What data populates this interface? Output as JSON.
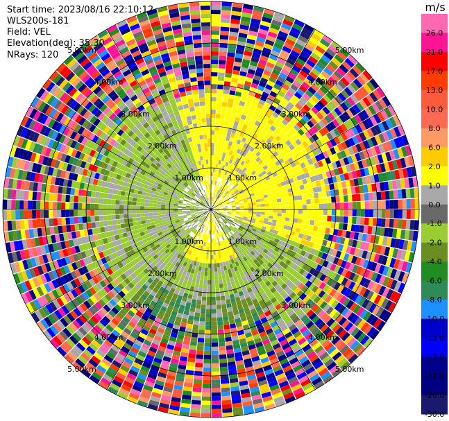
{
  "header": {
    "start_time": "Start time: 2023/08/16 22:10:12",
    "instrument": "WLS200s-181",
    "field": "Field: VEL",
    "elevation": "Elevation(deg): 35.30",
    "nrays": "NRays: 120"
  },
  "chart_data": {
    "type": "heatmap",
    "projection": "polar-ppi",
    "field": "VEL",
    "units": "m/s",
    "n_rays": 120,
    "range_rings": [
      {
        "range_km": 1.0,
        "label": "1.00km"
      },
      {
        "range_km": 2.0,
        "label": "2.00km"
      },
      {
        "range_km": 3.0,
        "label": "3.00km"
      },
      {
        "range_km": 4.0,
        "label": "4.00km"
      },
      {
        "range_km": 5.0,
        "label": "5.00km"
      }
    ],
    "max_range_km": 5.0,
    "colorbar": {
      "unit": "m/s",
      "ticks": [
        "26.0",
        "21.0",
        "17.0",
        "13.0",
        "10.0",
        "8.0",
        "6.0",
        "2.0",
        "1.0",
        "0.0",
        "-1.0",
        "-2.0",
        "-4.0",
        "-6.0",
        "-8.0",
        "-10.0",
        "-13.0",
        "-17.0",
        "-21.0",
        "-26.0",
        "-30.0"
      ],
      "bins": [
        {
          "max": 30,
          "color": "#ff69b4"
        },
        {
          "max": 26,
          "color": "#ff1493"
        },
        {
          "max": 21,
          "color": "#ff0000"
        },
        {
          "max": 17,
          "color": "#ff3c00"
        },
        {
          "max": 13,
          "color": "#ff5a3c"
        },
        {
          "max": 10,
          "color": "#ff6a50"
        },
        {
          "max": 8,
          "color": "#ff9966"
        },
        {
          "max": 6,
          "color": "#ffcc00"
        },
        {
          "max": 2,
          "color": "#ffff00"
        },
        {
          "max": 1,
          "color": "#a9a9a9"
        },
        {
          "max": 0,
          "color": "#696969"
        },
        {
          "max": -1,
          "color": "#9acd32"
        },
        {
          "max": -2,
          "color": "#6b8e23"
        },
        {
          "max": -4,
          "color": "#228b22"
        },
        {
          "max": -6,
          "color": "#2e8b57"
        },
        {
          "max": -8,
          "color": "#1e90ff"
        },
        {
          "max": -10,
          "color": "#0000cd"
        },
        {
          "max": -13,
          "color": "#0000ff"
        },
        {
          "max": -17,
          "color": "#00008b"
        },
        {
          "max": -21,
          "color": "#000080"
        },
        {
          "max": -26,
          "color": "#191970"
        }
      ]
    },
    "pattern": {
      "near_range_km": 2.6,
      "positive_sector_deg": [
        0,
        110
      ],
      "positive_blob_deg": [
        150,
        210
      ],
      "noise_range_km": 3.4
    }
  }
}
